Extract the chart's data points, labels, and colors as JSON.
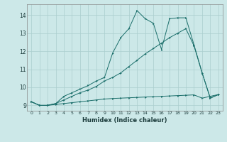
{
  "xlabel": "Humidex (Indice chaleur)",
  "bg_color": "#cce8e8",
  "line_color": "#1a6e6a",
  "grid_color": "#aacece",
  "xlim": [
    -0.5,
    23.5
  ],
  "ylim": [
    8.7,
    14.6
  ],
  "xticks": [
    0,
    1,
    2,
    3,
    4,
    5,
    6,
    7,
    8,
    9,
    10,
    11,
    12,
    13,
    14,
    15,
    16,
    17,
    18,
    19,
    20,
    21,
    22,
    23
  ],
  "yticks": [
    9,
    10,
    11,
    12,
    13,
    14
  ],
  "line1_x": [
    0,
    1,
    2,
    3,
    4,
    5,
    6,
    7,
    8,
    9,
    10,
    11,
    12,
    13,
    14,
    15,
    16,
    17,
    18,
    19,
    20,
    21,
    22,
    23
  ],
  "line1_y": [
    9.2,
    9.0,
    9.0,
    9.05,
    9.1,
    9.15,
    9.2,
    9.25,
    9.3,
    9.35,
    9.38,
    9.4,
    9.42,
    9.44,
    9.46,
    9.48,
    9.5,
    9.52,
    9.54,
    9.56,
    9.58,
    9.4,
    9.5,
    9.6
  ],
  "line2_x": [
    0,
    1,
    2,
    3,
    4,
    5,
    6,
    7,
    8,
    9,
    10,
    11,
    12,
    13,
    14,
    15,
    16,
    17,
    18,
    19,
    20,
    21,
    22,
    23
  ],
  "line2_y": [
    9.2,
    9.0,
    9.0,
    9.1,
    9.3,
    9.5,
    9.7,
    9.85,
    10.05,
    10.35,
    10.55,
    10.8,
    11.15,
    11.5,
    11.85,
    12.15,
    12.45,
    12.75,
    13.0,
    13.25,
    12.3,
    10.8,
    9.4,
    9.6
  ],
  "line3_x": [
    0,
    1,
    2,
    3,
    4,
    5,
    6,
    7,
    8,
    9,
    10,
    11,
    12,
    13,
    14,
    15,
    16,
    17,
    18,
    19,
    20,
    21,
    22,
    23
  ],
  "line3_y": [
    9.2,
    9.0,
    9.0,
    9.1,
    9.5,
    9.7,
    9.9,
    10.1,
    10.35,
    10.55,
    11.9,
    12.75,
    13.25,
    14.25,
    13.8,
    13.55,
    12.1,
    13.8,
    13.85,
    13.85,
    12.35,
    10.8,
    9.4,
    9.6
  ]
}
